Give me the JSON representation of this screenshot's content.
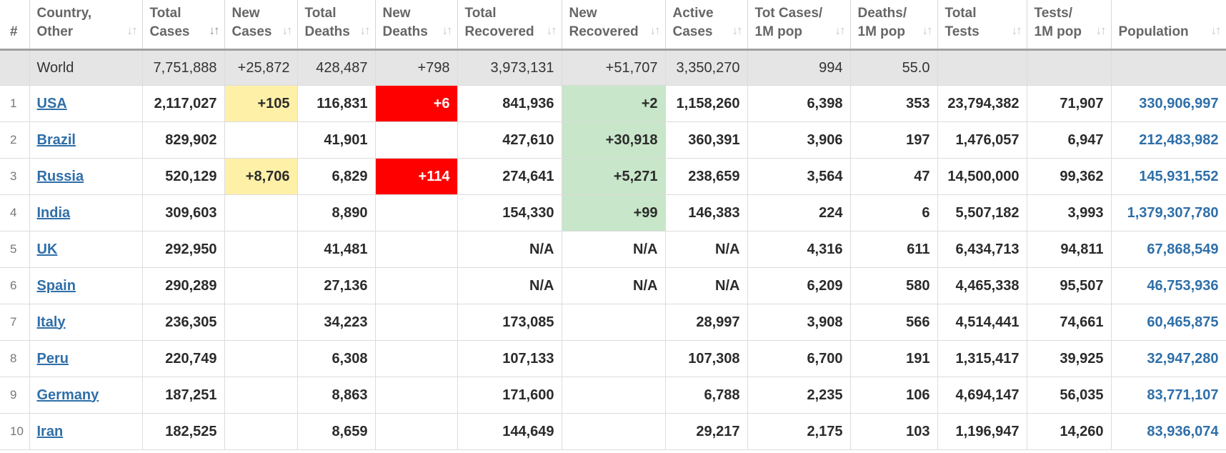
{
  "columns": [
    {
      "line1": "#",
      "line2": ""
    },
    {
      "line1": "Country,",
      "line2": "Other"
    },
    {
      "line1": "Total",
      "line2": "Cases"
    },
    {
      "line1": "New",
      "line2": "Cases"
    },
    {
      "line1": "Total",
      "line2": "Deaths"
    },
    {
      "line1": "New",
      "line2": "Deaths"
    },
    {
      "line1": "Total",
      "line2": "Recovered"
    },
    {
      "line1": "New",
      "line2": "Recovered"
    },
    {
      "line1": "Active",
      "line2": "Cases"
    },
    {
      "line1": "Tot Cases/",
      "line2": "1M pop"
    },
    {
      "line1": "Deaths/",
      "line2": "1M pop"
    },
    {
      "line1": "Total",
      "line2": "Tests"
    },
    {
      "line1": "Tests/",
      "line2": "1M pop"
    },
    {
      "line1": "",
      "line2": "Population"
    }
  ],
  "world": {
    "name": "World",
    "total_cases": "7,751,888",
    "new_cases": "+25,872",
    "total_deaths": "428,487",
    "new_deaths": "+798",
    "total_recovered": "3,973,131",
    "new_recovered": "+51,707",
    "active": "3,350,270",
    "cases_per_m": "994",
    "deaths_per_m": "55.0",
    "tests": "",
    "tests_per_m": "",
    "population": ""
  },
  "rows": [
    {
      "n": "1",
      "country": "USA",
      "total_cases": "2,117,027",
      "new_cases": "+105",
      "total_deaths": "116,831",
      "new_deaths": "+6",
      "total_recovered": "841,936",
      "new_recovered": "+2",
      "active": "1,158,260",
      "cases_per_m": "6,398",
      "deaths_per_m": "353",
      "tests": "23,794,382",
      "tests_per_m": "71,907",
      "population": "330,906,997"
    },
    {
      "n": "2",
      "country": "Brazil",
      "total_cases": "829,902",
      "new_cases": "",
      "total_deaths": "41,901",
      "new_deaths": "",
      "total_recovered": "427,610",
      "new_recovered": "+30,918",
      "active": "360,391",
      "cases_per_m": "3,906",
      "deaths_per_m": "197",
      "tests": "1,476,057",
      "tests_per_m": "6,947",
      "population": "212,483,982"
    },
    {
      "n": "3",
      "country": "Russia",
      "total_cases": "520,129",
      "new_cases": "+8,706",
      "total_deaths": "6,829",
      "new_deaths": "+114",
      "total_recovered": "274,641",
      "new_recovered": "+5,271",
      "active": "238,659",
      "cases_per_m": "3,564",
      "deaths_per_m": "47",
      "tests": "14,500,000",
      "tests_per_m": "99,362",
      "population": "145,931,552"
    },
    {
      "n": "4",
      "country": "India",
      "total_cases": "309,603",
      "new_cases": "",
      "total_deaths": "8,890",
      "new_deaths": "",
      "total_recovered": "154,330",
      "new_recovered": "+99",
      "active": "146,383",
      "cases_per_m": "224",
      "deaths_per_m": "6",
      "tests": "5,507,182",
      "tests_per_m": "3,993",
      "population": "1,379,307,780"
    },
    {
      "n": "5",
      "country": "UK",
      "total_cases": "292,950",
      "new_cases": "",
      "total_deaths": "41,481",
      "new_deaths": "",
      "total_recovered": "N/A",
      "new_recovered": "N/A",
      "active": "N/A",
      "cases_per_m": "4,316",
      "deaths_per_m": "611",
      "tests": "6,434,713",
      "tests_per_m": "94,811",
      "population": "67,868,549"
    },
    {
      "n": "6",
      "country": "Spain",
      "total_cases": "290,289",
      "new_cases": "",
      "total_deaths": "27,136",
      "new_deaths": "",
      "total_recovered": "N/A",
      "new_recovered": "N/A",
      "active": "N/A",
      "cases_per_m": "6,209",
      "deaths_per_m": "580",
      "tests": "4,465,338",
      "tests_per_m": "95,507",
      "population": "46,753,936"
    },
    {
      "n": "7",
      "country": "Italy",
      "total_cases": "236,305",
      "new_cases": "",
      "total_deaths": "34,223",
      "new_deaths": "",
      "total_recovered": "173,085",
      "new_recovered": "",
      "active": "28,997",
      "cases_per_m": "3,908",
      "deaths_per_m": "566",
      "tests": "4,514,441",
      "tests_per_m": "74,661",
      "population": "60,465,875"
    },
    {
      "n": "8",
      "country": "Peru",
      "total_cases": "220,749",
      "new_cases": "",
      "total_deaths": "6,308",
      "new_deaths": "",
      "total_recovered": "107,133",
      "new_recovered": "",
      "active": "107,308",
      "cases_per_m": "6,700",
      "deaths_per_m": "191",
      "tests": "1,315,417",
      "tests_per_m": "39,925",
      "population": "32,947,280"
    },
    {
      "n": "9",
      "country": "Germany",
      "total_cases": "187,251",
      "new_cases": "",
      "total_deaths": "8,863",
      "new_deaths": "",
      "total_recovered": "171,600",
      "new_recovered": "",
      "active": "6,788",
      "cases_per_m": "2,235",
      "deaths_per_m": "106",
      "tests": "4,694,147",
      "tests_per_m": "56,035",
      "population": "83,771,107"
    },
    {
      "n": "10",
      "country": "Iran",
      "total_cases": "182,525",
      "new_cases": "",
      "total_deaths": "8,659",
      "new_deaths": "",
      "total_recovered": "144,649",
      "new_recovered": "",
      "active": "29,217",
      "cases_per_m": "2,175",
      "deaths_per_m": "103",
      "tests": "1,196,947",
      "tests_per_m": "14,260",
      "population": "83,936,074"
    }
  ],
  "colors": {
    "new_cases_bg": "#fff0a8",
    "new_deaths_bg": "#ff0000",
    "new_recovered_bg": "#c8e6c9",
    "link": "#2f6fa8",
    "world_row_bg": "#e5e5e5"
  },
  "icons": {
    "sort": "sort-arrows-icon",
    "sort_active": "sort-desc-icon"
  }
}
